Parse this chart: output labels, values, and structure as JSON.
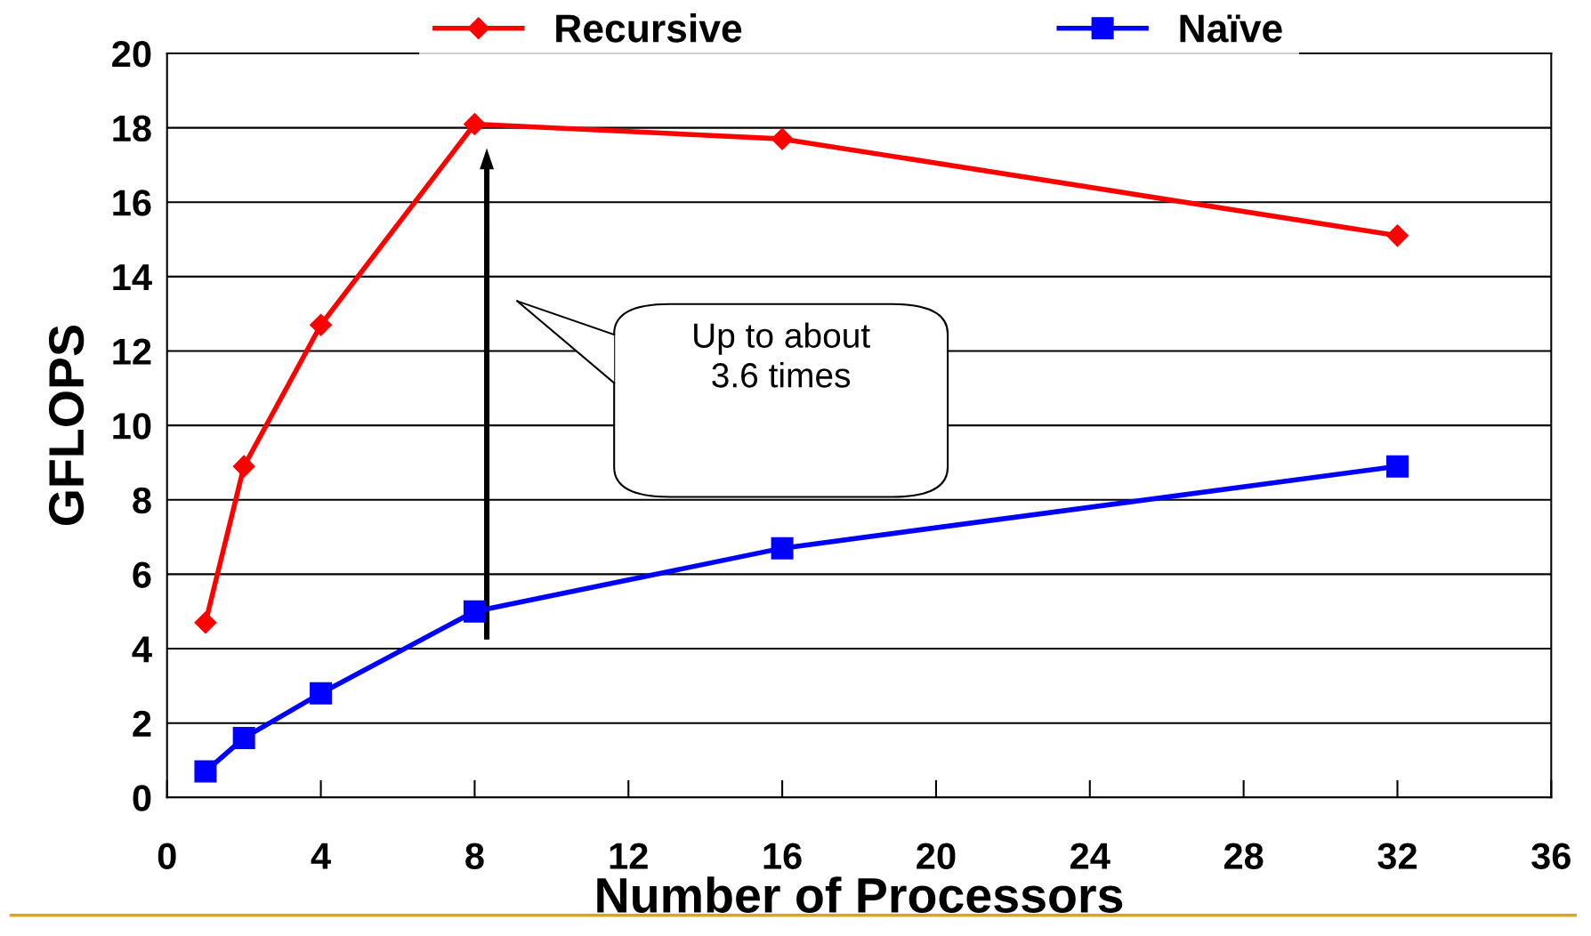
{
  "chart_data": {
    "type": "line",
    "xlabel": "Number of Processors",
    "ylabel": "GFLOPS",
    "x": [
      1,
      2,
      4,
      8,
      16,
      32
    ],
    "series": [
      {
        "name": "Recursive",
        "color": "#ff0000",
        "values": [
          4.7,
          8.9,
          12.7,
          18.1,
          17.7,
          15.1
        ],
        "marker": "diamond"
      },
      {
        "name": "Naïve",
        "color": "#0000ff",
        "values": [
          0.7,
          1.6,
          2.8,
          5.0,
          6.7,
          8.9
        ],
        "marker": "square"
      }
    ],
    "xlim": [
      0,
      36
    ],
    "xticks": [
      0,
      4,
      8,
      12,
      16,
      20,
      24,
      28,
      32,
      36
    ],
    "ylim": [
      0,
      20
    ],
    "yticks": [
      0,
      2,
      4,
      6,
      8,
      10,
      12,
      14,
      16,
      18,
      20
    ],
    "grid": "y",
    "legend": "top",
    "line_style": "solid",
    "annotations": [
      "Up to about\n3.6 times"
    ]
  }
}
